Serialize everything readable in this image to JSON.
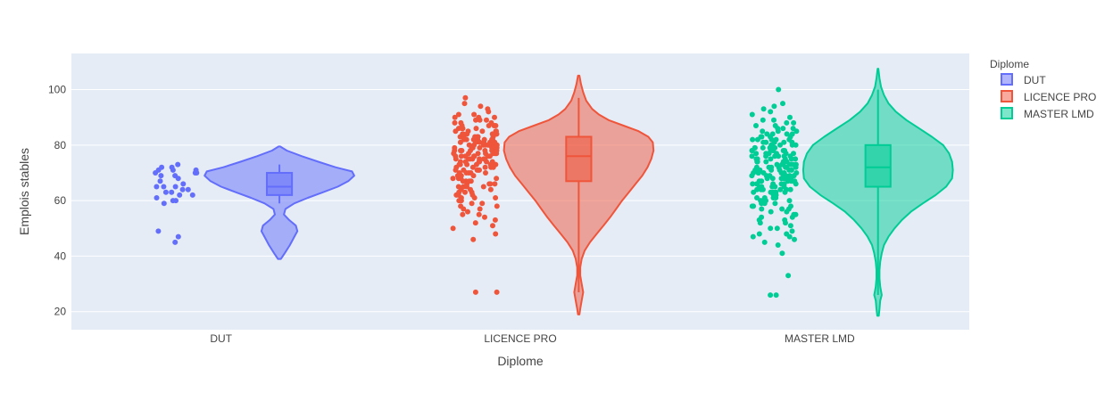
{
  "chart_data": {
    "type": "violin",
    "xlabel": "Diplome",
    "ylabel": "Emplois stables",
    "ylim": [
      13.5,
      113
    ],
    "yticks": [
      20,
      40,
      60,
      80,
      100
    ],
    "grid": true,
    "legend": {
      "title": "Diplome",
      "placement": "top-right"
    },
    "categories": [
      "DUT",
      "LICENCE PRO",
      "MASTER LMD"
    ],
    "series": [
      {
        "name": "DUT",
        "color": "#636efa",
        "box": {
          "q1": 62,
          "median": 65,
          "q3": 70,
          "whisker_low": 59,
          "whisker_high": 73
        },
        "violin": {
          "min": 39,
          "max": 79.5,
          "density": [
            [
              39,
              0.02
            ],
            [
              41,
              0.07
            ],
            [
              44,
              0.14
            ],
            [
              47,
              0.2
            ],
            [
              49,
              0.24
            ],
            [
              51,
              0.22
            ],
            [
              53,
              0.13
            ],
            [
              55,
              0.06
            ],
            [
              57,
              0.08
            ],
            [
              59,
              0.2
            ],
            [
              61,
              0.38
            ],
            [
              63,
              0.58
            ],
            [
              65,
              0.78
            ],
            [
              67,
              0.92
            ],
            [
              69,
              1.0
            ],
            [
              70.5,
              0.97
            ],
            [
              72,
              0.75
            ],
            [
              74,
              0.52
            ],
            [
              76,
              0.3
            ],
            [
              78,
              0.1
            ],
            [
              79.5,
              0.01
            ]
          ]
        },
        "points": [
          45,
          47,
          49,
          59,
          60,
          60,
          61,
          62,
          62,
          63,
          63,
          64,
          64,
          65,
          65,
          65,
          66,
          67,
          68,
          69,
          69,
          70,
          70,
          70,
          71,
          71,
          71,
          72,
          72,
          73
        ]
      },
      {
        "name": "LICENCE PRO",
        "color": "#ef553b",
        "box": {
          "q1": 67,
          "median": 76,
          "q3": 83,
          "whisker_low": 27,
          "whisker_high": 97
        },
        "violin": {
          "min": 19,
          "max": 105,
          "density": [
            [
              19,
              0.01
            ],
            [
              21,
              0.02
            ],
            [
              24,
              0.04
            ],
            [
              27,
              0.06
            ],
            [
              30,
              0.04
            ],
            [
              33,
              0.02
            ],
            [
              36,
              0.02
            ],
            [
              39,
              0.04
            ],
            [
              42,
              0.08
            ],
            [
              45,
              0.15
            ],
            [
              48,
              0.24
            ],
            [
              51,
              0.33
            ],
            [
              54,
              0.42
            ],
            [
              57,
              0.5
            ],
            [
              60,
              0.58
            ],
            [
              63,
              0.67
            ],
            [
              66,
              0.76
            ],
            [
              69,
              0.85
            ],
            [
              72,
              0.92
            ],
            [
              75,
              0.97
            ],
            [
              78,
              1.0
            ],
            [
              81,
              0.99
            ],
            [
              83,
              0.93
            ],
            [
              85,
              0.8
            ],
            [
              87,
              0.6
            ],
            [
              89,
              0.4
            ],
            [
              91,
              0.27
            ],
            [
              93,
              0.18
            ],
            [
              96,
              0.1
            ],
            [
              99,
              0.06
            ],
            [
              102,
              0.03
            ],
            [
              105,
              0.01
            ]
          ]
        },
        "points": [
          27,
          27,
          46,
          48,
          50,
          51,
          52,
          53,
          54,
          55,
          55,
          56,
          57,
          57,
          58,
          58,
          59,
          59,
          60,
          60,
          60,
          61,
          61,
          61,
          62,
          62,
          62,
          63,
          63,
          63,
          64,
          64,
          64,
          65,
          65,
          65,
          65,
          66,
          66,
          66,
          66,
          67,
          67,
          67,
          67,
          68,
          68,
          68,
          68,
          69,
          69,
          69,
          69,
          70,
          70,
          70,
          70,
          70,
          71,
          71,
          71,
          71,
          71,
          72,
          72,
          72,
          72,
          72,
          73,
          73,
          73,
          73,
          73,
          73,
          74,
          74,
          74,
          74,
          74,
          74,
          75,
          75,
          75,
          75,
          75,
          75,
          75,
          76,
          76,
          76,
          76,
          76,
          76,
          76,
          77,
          77,
          77,
          77,
          77,
          77,
          77,
          78,
          78,
          78,
          78,
          78,
          78,
          78,
          79,
          79,
          79,
          79,
          79,
          79,
          79,
          80,
          80,
          80,
          80,
          80,
          80,
          80,
          80,
          81,
          81,
          81,
          81,
          81,
          81,
          81,
          82,
          82,
          82,
          82,
          82,
          82,
          82,
          83,
          83,
          83,
          83,
          83,
          83,
          84,
          84,
          84,
          84,
          84,
          84,
          85,
          85,
          85,
          85,
          85,
          86,
          86,
          86,
          86,
          87,
          87,
          87,
          87,
          88,
          88,
          88,
          89,
          89,
          89,
          90,
          90,
          90,
          91,
          91,
          92,
          93,
          94,
          95,
          97
        ]
      },
      {
        "name": "MASTER LMD",
        "color": "#00cc96",
        "box": {
          "q1": 65,
          "median": 72,
          "q3": 80,
          "whisker_low": 26,
          "whisker_high": 100
        },
        "violin": {
          "min": 18.5,
          "max": 107.5,
          "density": [
            [
              18.5,
              0.01
            ],
            [
              21,
              0.02
            ],
            [
              24,
              0.03
            ],
            [
              26,
              0.05
            ],
            [
              29,
              0.03
            ],
            [
              32,
              0.02
            ],
            [
              35,
              0.02
            ],
            [
              38,
              0.03
            ],
            [
              41,
              0.05
            ],
            [
              44,
              0.08
            ],
            [
              47,
              0.14
            ],
            [
              50,
              0.22
            ],
            [
              53,
              0.32
            ],
            [
              56,
              0.44
            ],
            [
              59,
              0.6
            ],
            [
              62,
              0.77
            ],
            [
              65,
              0.91
            ],
            [
              68,
              0.99
            ],
            [
              71,
              1.0
            ],
            [
              74,
              0.99
            ],
            [
              77,
              0.95
            ],
            [
              80,
              0.87
            ],
            [
              83,
              0.72
            ],
            [
              86,
              0.55
            ],
            [
              89,
              0.38
            ],
            [
              92,
              0.24
            ],
            [
              95,
              0.14
            ],
            [
              98,
              0.08
            ],
            [
              101,
              0.04
            ],
            [
              104,
              0.02
            ],
            [
              107.5,
              0.005
            ]
          ]
        },
        "points": [
          26,
          26,
          33,
          41,
          44,
          45,
          46,
          47,
          47,
          48,
          48,
          49,
          50,
          50,
          51,
          52,
          52,
          53,
          53,
          54,
          54,
          55,
          55,
          56,
          56,
          57,
          57,
          57,
          58,
          58,
          58,
          59,
          59,
          59,
          60,
          60,
          60,
          60,
          61,
          61,
          61,
          61,
          62,
          62,
          62,
          62,
          62,
          63,
          63,
          63,
          63,
          63,
          64,
          64,
          64,
          64,
          64,
          64,
          65,
          65,
          65,
          65,
          65,
          65,
          66,
          66,
          66,
          66,
          66,
          66,
          67,
          67,
          67,
          67,
          67,
          67,
          68,
          68,
          68,
          68,
          68,
          68,
          68,
          69,
          69,
          69,
          69,
          69,
          69,
          69,
          70,
          70,
          70,
          70,
          70,
          70,
          70,
          71,
          71,
          71,
          71,
          71,
          71,
          71,
          72,
          72,
          72,
          72,
          72,
          72,
          72,
          73,
          73,
          73,
          73,
          73,
          73,
          73,
          74,
          74,
          74,
          74,
          74,
          74,
          75,
          75,
          75,
          75,
          75,
          75,
          76,
          76,
          76,
          76,
          76,
          76,
          77,
          77,
          77,
          77,
          77,
          77,
          78,
          78,
          78,
          78,
          78,
          78,
          79,
          79,
          79,
          79,
          79,
          80,
          80,
          80,
          80,
          80,
          81,
          81,
          81,
          81,
          81,
          82,
          82,
          82,
          82,
          82,
          83,
          83,
          83,
          83,
          84,
          84,
          84,
          84,
          85,
          85,
          85,
          86,
          86,
          86,
          87,
          87,
          88,
          88,
          89,
          89,
          90,
          91,
          92,
          93,
          94,
          95,
          100
        ]
      }
    ]
  }
}
